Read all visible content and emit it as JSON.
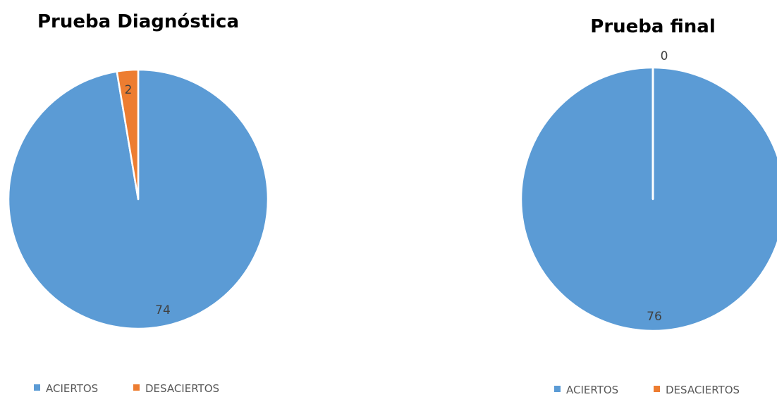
{
  "colors": {
    "aciertos": "#5b9bd5",
    "desaciertos": "#ed7d31",
    "slice_border": "#ffffff"
  },
  "chart_data": [
    {
      "type": "pie",
      "title": "Prueba Diagnóstica",
      "categories": [
        "ACIERTOS",
        "DESACIERTOS"
      ],
      "values": [
        74,
        2
      ],
      "data_labels": [
        "74",
        "2"
      ],
      "legend": {
        "position": "bottom",
        "entries": [
          "ACIERTOS",
          "DESACIERTOS"
        ]
      }
    },
    {
      "type": "pie",
      "title": "Prueba final",
      "categories": [
        "ACIERTOS",
        "DESACIERTOS"
      ],
      "values": [
        76,
        0
      ],
      "data_labels": [
        "76",
        "0"
      ],
      "legend": {
        "position": "bottom",
        "entries": [
          "ACIERTOS",
          "DESACIERTOS"
        ]
      }
    }
  ]
}
